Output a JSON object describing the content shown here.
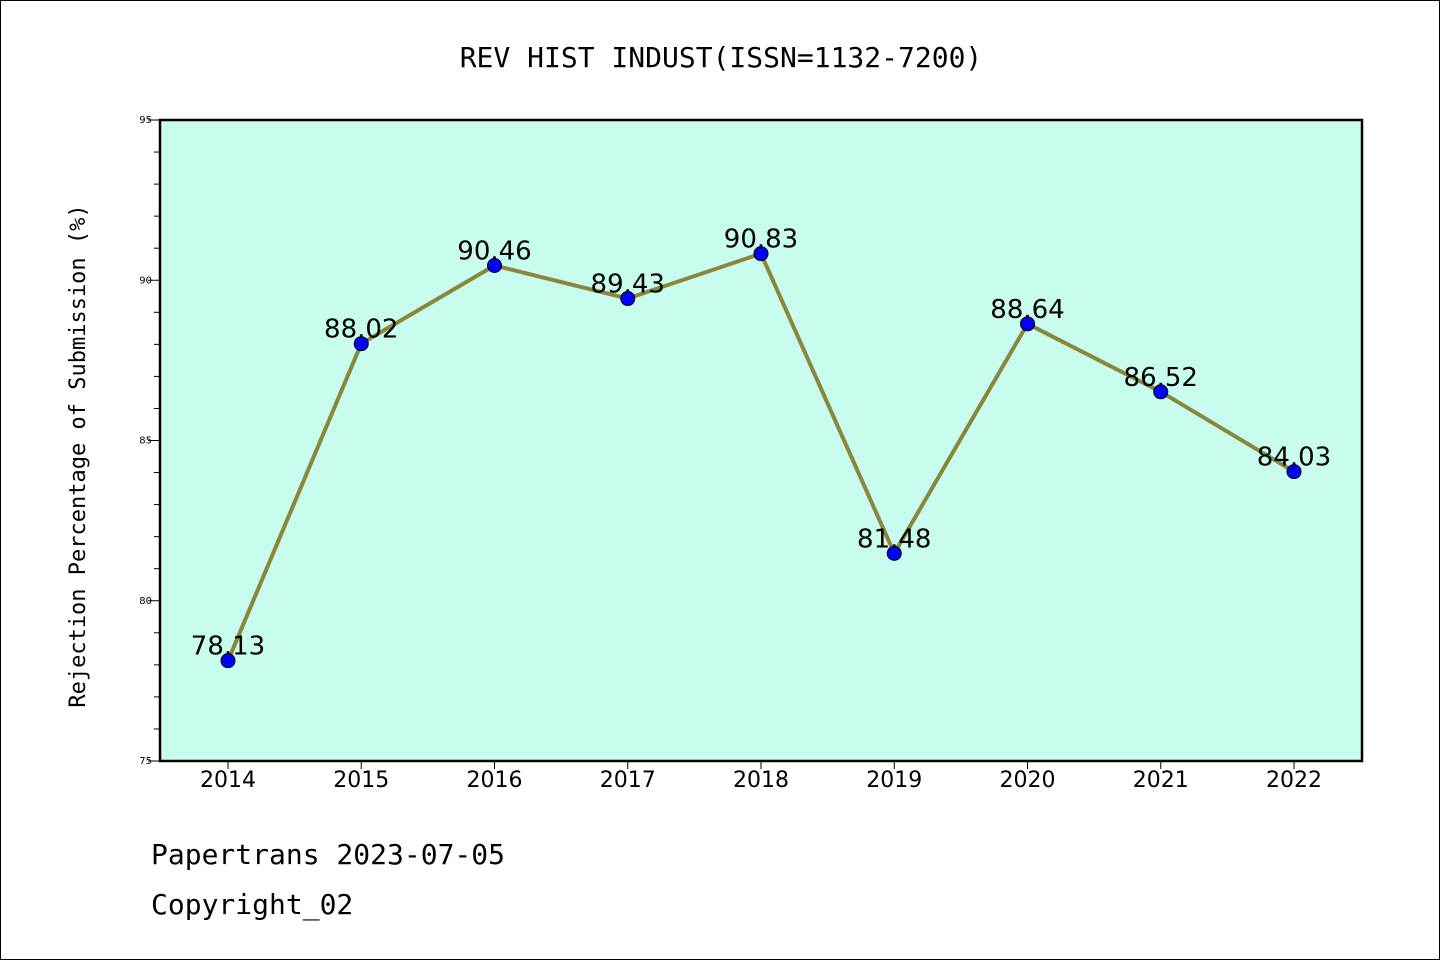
{
  "chart_data": {
    "type": "line",
    "title": "REV HIST INDUST(ISSN=1132-7200)",
    "xlabel": "",
    "ylabel": "Rejection Percentage of Submission (%)",
    "categories": [
      "2014",
      "2015",
      "2016",
      "2017",
      "2018",
      "2019",
      "2020",
      "2021",
      "2022"
    ],
    "series": [
      {
        "values": [
          78.13,
          88.02,
          90.46,
          89.43,
          90.83,
          81.48,
          88.64,
          86.52,
          84.03
        ],
        "value_labels": [
          "78.13",
          "88.02",
          "90.46",
          "89.43",
          "90.83",
          "81.48",
          "88.64",
          "86.52",
          "84.03"
        ]
      }
    ],
    "ylim": [
      75,
      95
    ],
    "yticks": [
      75,
      80,
      85,
      90,
      95
    ],
    "ytick_labels": [
      "75",
      "80",
      "85",
      "90",
      "95"
    ],
    "grid": false,
    "colors": {
      "plot_background": "#c8fcee",
      "line": "#8b873a",
      "marker": "#0000ff"
    }
  },
  "footer": {
    "line1": "Papertrans 2023-07-05",
    "line2": "Copyright_02"
  }
}
